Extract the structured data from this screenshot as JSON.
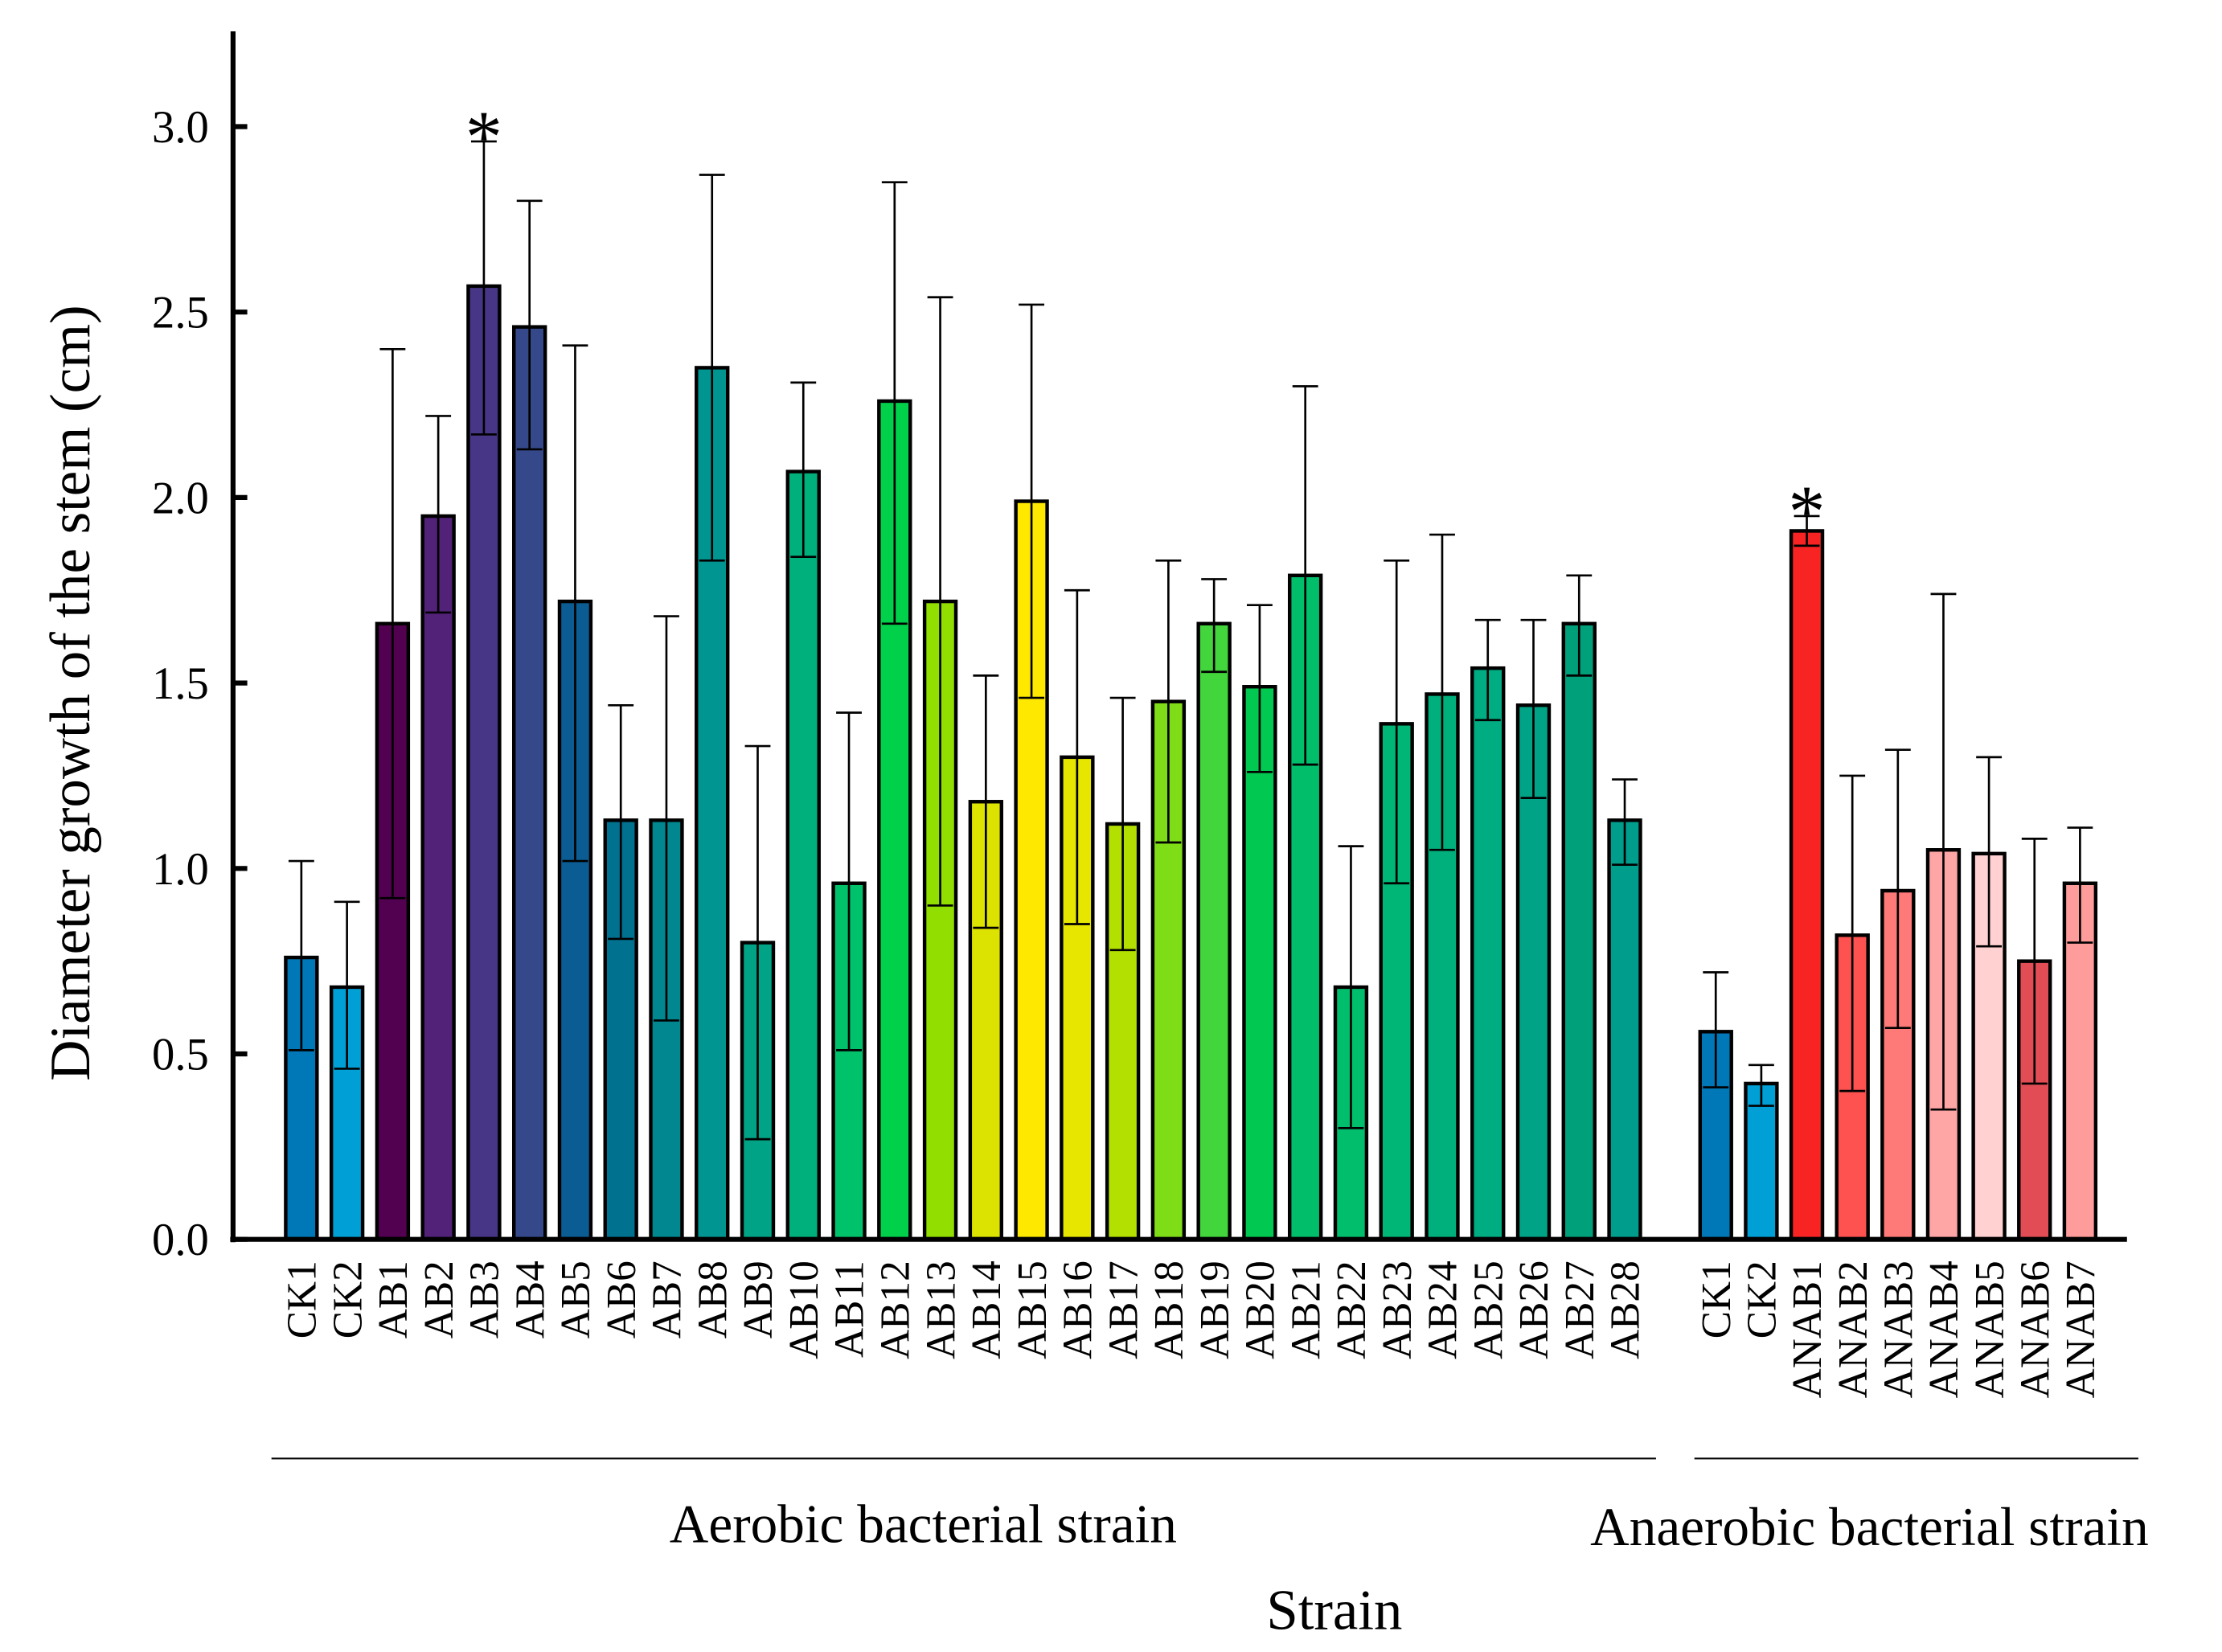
{
  "chart_data": {
    "type": "bar",
    "title": "",
    "xlabel": "Strain",
    "ylabel": "Diameter growth of the stem (cm)",
    "ylim": [
      0,
      3.25
    ],
    "yticks": [
      "0.0",
      "0.5",
      "1.0",
      "1.5",
      "2.0",
      "2.5",
      "3.0"
    ],
    "grid": false,
    "groups": [
      {
        "name": "Aerobic bacterial strain",
        "categories": [
          "CK1",
          "CK2",
          "AB1",
          "AB2",
          "AB3",
          "AB4",
          "AB5",
          "AB6",
          "AB7",
          "AB8",
          "AB9",
          "AB10",
          "AB11",
          "AB12",
          "AB13",
          "AB14",
          "AB15",
          "AB16",
          "AB17",
          "AB18",
          "AB19",
          "AB20",
          "AB21",
          "AB22",
          "AB23",
          "AB24",
          "AB25",
          "AB26",
          "AB27",
          "AB28"
        ],
        "values": [
          0.76,
          0.68,
          1.66,
          1.95,
          2.57,
          2.46,
          1.72,
          1.13,
          1.13,
          2.35,
          0.8,
          2.07,
          0.96,
          2.26,
          1.72,
          1.18,
          1.99,
          1.3,
          1.12,
          1.45,
          1.66,
          1.49,
          1.79,
          0.68,
          1.39,
          1.47,
          1.54,
          1.44,
          1.66,
          1.13
        ],
        "error_upper": [
          1.02,
          0.91,
          2.4,
          2.22,
          2.96,
          2.8,
          2.41,
          1.44,
          1.68,
          2.87,
          1.33,
          2.31,
          1.42,
          2.85,
          2.54,
          1.52,
          2.52,
          1.75,
          1.46,
          1.83,
          1.78,
          1.71,
          2.3,
          1.06,
          1.83,
          1.9,
          1.67,
          1.67,
          1.79,
          1.24
        ],
        "error_lower": [
          0.51,
          0.46,
          0.92,
          1.69,
          2.17,
          2.13,
          1.02,
          0.81,
          0.59,
          1.83,
          0.27,
          1.84,
          0.51,
          1.66,
          0.9,
          0.84,
          1.46,
          0.85,
          0.78,
          1.07,
          1.53,
          1.26,
          1.28,
          0.3,
          0.96,
          1.05,
          1.4,
          1.19,
          1.52,
          1.01
        ],
        "colors": [
          "#0077b6",
          "#009fd6",
          "#520050",
          "#522178",
          "#473685",
          "#35488a",
          "#0b5c92",
          "#00718f",
          "#008790",
          "#009590",
          "#00a385",
          "#00b07c",
          "#00c26a",
          "#00d04a",
          "#91de00",
          "#dde300",
          "#ffe800",
          "#e6e600",
          "#b3e000",
          "#7fdd18",
          "#42d53c",
          "#00c850",
          "#00be6a",
          "#00be6c",
          "#00b677",
          "#00b07c",
          "#00ac82",
          "#00a386",
          "#00a07a",
          "#009c8c"
        ],
        "significant": [
          "AB3"
        ]
      },
      {
        "name": "Anaerobic bacterial strain",
        "categories": [
          "CK1",
          "CK2",
          "ANAB1",
          "ANAB2",
          "ANAB3",
          "ANAB4",
          "ANAB5",
          "ANAB6",
          "ANAB7"
        ],
        "values": [
          0.56,
          0.42,
          1.91,
          0.82,
          0.94,
          1.05,
          1.04,
          0.75,
          0.96
        ],
        "error_upper": [
          0.72,
          0.47,
          1.95,
          1.25,
          1.32,
          1.74,
          1.3,
          1.08,
          1.11
        ],
        "error_lower": [
          0.41,
          0.36,
          1.87,
          0.4,
          0.57,
          0.35,
          0.79,
          0.42,
          0.8
        ],
        "colors": [
          "#0077b6",
          "#009fd6",
          "#f82424",
          "#fe5250",
          "#fe7a78",
          "#fea5a5",
          "#ffd1d1",
          "#e24d55",
          "#fe9b9b"
        ],
        "significant": [
          "ANAB1"
        ]
      }
    ],
    "significance_marker": "*"
  }
}
